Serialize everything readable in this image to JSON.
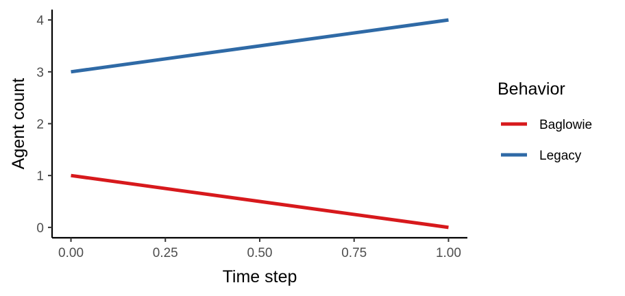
{
  "chart_data": {
    "type": "line",
    "title": "",
    "xlabel": "Time step",
    "ylabel": "Agent count",
    "x": [
      0,
      1
    ],
    "xlim": [
      -0.05,
      1.05
    ],
    "ylim": [
      -0.2,
      4.2
    ],
    "x_ticks": [
      0,
      0.25,
      0.5,
      0.75,
      1
    ],
    "x_tick_labels": [
      "0.00",
      "0.25",
      "0.50",
      "0.75",
      "1.00"
    ],
    "y_ticks": [
      0,
      1,
      2,
      3,
      4
    ],
    "y_tick_labels": [
      "0",
      "1",
      "2",
      "3",
      "4"
    ],
    "grid": false,
    "legend_position": "right",
    "legend_title": "Behavior",
    "series": [
      {
        "name": "Baglowie",
        "color": "#d7191c",
        "x": [
          0,
          1
        ],
        "y": [
          1,
          0
        ]
      },
      {
        "name": "Legacy",
        "color": "#2f6aa6",
        "x": [
          0,
          1
        ],
        "y": [
          3,
          4
        ]
      }
    ]
  }
}
